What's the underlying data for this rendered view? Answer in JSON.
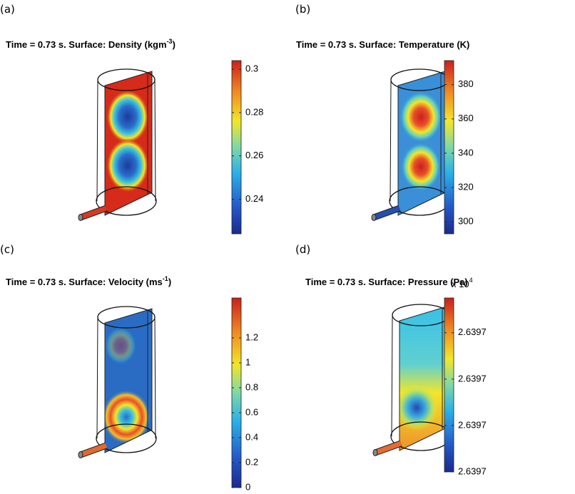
{
  "panels": [
    {
      "label": "(a)",
      "title": "Time = 0.73 s. Surface: Density (kgm",
      "title_sup": "-3",
      "title_end": ")",
      "clim": [
        0.224,
        0.304
      ],
      "ticks": [
        0.24,
        0.26,
        0.28,
        0.3
      ]
    },
    {
      "label": "(b)",
      "title": "Time = 0.73 s. Surface: Temperature (K)",
      "clim": [
        293,
        394
      ],
      "ticks": [
        300,
        320,
        340,
        360,
        380
      ]
    },
    {
      "label": "(c)",
      "title": "Time = 0.73 s. Surface: Velocity (ms",
      "title_sup": "-1",
      "title_end": ")",
      "clim": [
        0,
        1.52
      ],
      "ticks": [
        0,
        0.2,
        0.4,
        0.6,
        0.8,
        1,
        1.2
      ]
    },
    {
      "label": "(d)",
      "title": "Time = 0.73 s. Surface: Pressure (Pa)",
      "multiplier": "x 10",
      "multiplier_sup": "4",
      "clim": [
        2.63966,
        2.639735
      ],
      "ticks": [
        {
          "value": 2.63966,
          "label": "2.6397"
        },
        {
          "value": 2.63968,
          "label": "2.6397"
        },
        {
          "value": 2.6397,
          "label": "2.6397"
        },
        {
          "value": 2.63972,
          "label": "2.6397"
        }
      ]
    }
  ]
}
